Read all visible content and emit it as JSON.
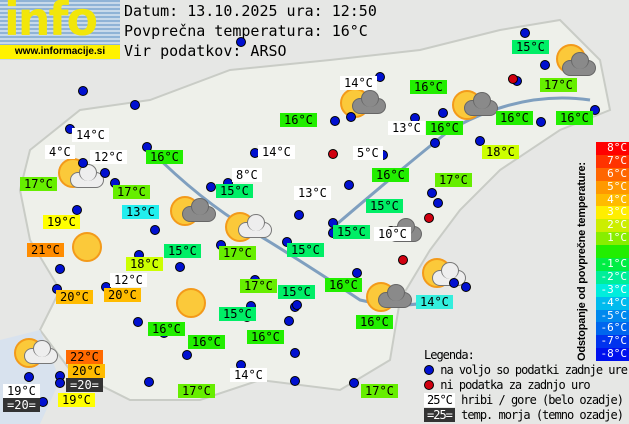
{
  "logo": {
    "text": "info",
    "url": "www.informacije.si"
  },
  "header": {
    "date_line": "Datum: 13.10.2025 ura: 12:50",
    "avg_line": "Povprečna temperatura: 16°C",
    "source_line": "Vir podatkov: ARSO"
  },
  "colors": {
    "station": "#0010d0",
    "no_data": "#d00010",
    "c15": "#00ee66",
    "c16": "#22ee00",
    "c17": "#66ee00",
    "c18": "#ccff00",
    "c19": "#ffff00",
    "c20": "#ffbb00",
    "c21": "#ff8c00",
    "c22": "#ff6a00",
    "c13": "#22eeee",
    "c14": "#33eedd",
    "white": "#ffffff",
    "sea": "#333333"
  },
  "labels": [
    {
      "t": "15°C",
      "c": "c15"
    },
    {
      "t": "14°C",
      "c": "white"
    },
    {
      "t": "16°C",
      "c": "c16"
    },
    {
      "t": "17°C",
      "c": "c17"
    },
    {
      "t": "16°C",
      "c": "c16"
    },
    {
      "t": "13°C",
      "c": "white"
    },
    {
      "t": "16°C",
      "c": "c16"
    },
    {
      "t": "16°C",
      "c": "c16"
    },
    {
      "t": "16°C",
      "c": "c16"
    },
    {
      "t": "14°C",
      "c": "white"
    },
    {
      "t": "4°C",
      "c": "white"
    },
    {
      "t": "12°C",
      "c": "white"
    },
    {
      "t": "16°C",
      "c": "c16"
    },
    {
      "t": "14°C",
      "c": "white"
    },
    {
      "t": "5°C",
      "c": "white"
    },
    {
      "t": "18°C",
      "c": "c18"
    },
    {
      "t": "17°C",
      "c": "c17"
    },
    {
      "t": "17°C",
      "c": "c17"
    },
    {
      "t": "8°C",
      "c": "white"
    },
    {
      "t": "13°C",
      "c": "white"
    },
    {
      "t": "16°C",
      "c": "c16"
    },
    {
      "t": "17°C",
      "c": "c17"
    },
    {
      "t": "15°C",
      "c": "c15"
    },
    {
      "t": "13°C",
      "c": "c13"
    },
    {
      "t": "19°C",
      "c": "c19"
    },
    {
      "t": "15°C",
      "c": "c15"
    },
    {
      "t": "21°C",
      "c": "c21"
    },
    {
      "t": "18°C",
      "c": "c18"
    },
    {
      "t": "15°C",
      "c": "c15"
    },
    {
      "t": "17°C",
      "c": "c17"
    },
    {
      "t": "15°C",
      "c": "c15"
    },
    {
      "t": "15°C",
      "c": "c15"
    },
    {
      "t": "10°C",
      "c": "white"
    },
    {
      "t": "12°C",
      "c": "white"
    },
    {
      "t": "20°C",
      "c": "c20"
    },
    {
      "t": "20°C",
      "c": "c20"
    },
    {
      "t": "17°C",
      "c": "c17"
    },
    {
      "t": "15°C",
      "c": "c15"
    },
    {
      "t": "16°C",
      "c": "c16"
    },
    {
      "t": "14°C",
      "c": "c14"
    },
    {
      "t": "16°C",
      "c": "c16"
    },
    {
      "t": "15°C",
      "c": "c15"
    },
    {
      "t": "16°C",
      "c": "c16"
    },
    {
      "t": "16°C",
      "c": "c16"
    },
    {
      "t": "16°C",
      "c": "c16"
    },
    {
      "t": "22°C",
      "c": "c22"
    },
    {
      "t": "20°C",
      "c": "c20"
    },
    {
      "t": "=20=",
      "c": "sea"
    },
    {
      "t": "19°C",
      "c": "white"
    },
    {
      "t": "=20=",
      "c": "sea"
    },
    {
      "t": "19°C",
      "c": "c19"
    },
    {
      "t": "14°C",
      "c": "white"
    },
    {
      "t": "17°C",
      "c": "c17"
    },
    {
      "t": "17°C",
      "c": "c17"
    }
  ],
  "scale": {
    "title": "Odstopanje od povprečne temperature:",
    "steps": [
      {
        "t": "8°C",
        "c": "#ff0000"
      },
      {
        "t": "7°C",
        "c": "#ff3300"
      },
      {
        "t": "6°C",
        "c": "#ff6600"
      },
      {
        "t": "5°C",
        "c": "#ff9900"
      },
      {
        "t": "4°C",
        "c": "#ffbb00"
      },
      {
        "t": "3°C",
        "c": "#ffee00"
      },
      {
        "t": "2°C",
        "c": "#ccee00"
      },
      {
        "t": "1°C",
        "c": "#88ee00"
      },
      {
        "t": "",
        "c": "#22ee00"
      },
      {
        "t": "-1°C",
        "c": "#00ee44"
      },
      {
        "t": "-2°C",
        "c": "#00ee99"
      },
      {
        "t": "-3°C",
        "c": "#00eedd"
      },
      {
        "t": "-4°C",
        "c": "#00bbee"
      },
      {
        "t": "-5°C",
        "c": "#0088ee"
      },
      {
        "t": "-6°C",
        "c": "#0066ee"
      },
      {
        "t": "-7°C",
        "c": "#0033ee"
      },
      {
        "t": "-8°C",
        "c": "#0011ee"
      }
    ]
  },
  "legend": {
    "title": "Legenda:",
    "station": "na voljo so podatki zadnje ure",
    "no_data": "ni podatka za zadnjo uro",
    "mountain_sample": "25°C",
    "mountain": "hribi / gore (belo ozadje)",
    "sea_sample": "=25=",
    "sea": "temp. morja (temno ozadje)"
  }
}
